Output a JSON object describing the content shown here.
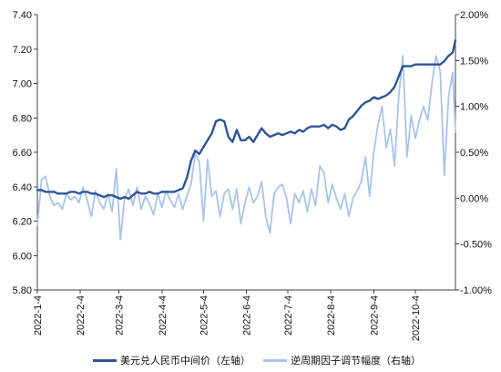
{
  "chart_data": {
    "type": "line",
    "grid": false,
    "legend_position": "bottom",
    "x_range": [
      "2022-01-04",
      "2022-11-02"
    ],
    "x_ticks": [
      "2022-1-4",
      "2022-2-4",
      "2022-3-4",
      "2022-4-4",
      "2022-5-4",
      "2022-6-4",
      "2022-7-4",
      "2022-8-4",
      "2022-9-4",
      "2022-10-4"
    ],
    "y_left": {
      "range": [
        5.8,
        7.4
      ],
      "ticks": [
        "5.80",
        "6.00",
        "6.20",
        "6.40",
        "6.60",
        "6.80",
        "7.00",
        "7.20",
        "7.40"
      ]
    },
    "y_right": {
      "range": [
        -1.0,
        2.0
      ],
      "ticks": [
        "-1.00%",
        "-0.50%",
        "0.00%",
        "0.50%",
        "1.00%",
        "1.50%",
        "2.00%"
      ]
    },
    "x": [
      "2022-01-04",
      "2022-01-07",
      "2022-01-10",
      "2022-01-13",
      "2022-01-16",
      "2022-01-19",
      "2022-01-22",
      "2022-01-25",
      "2022-01-28",
      "2022-01-31",
      "2022-02-03",
      "2022-02-06",
      "2022-02-09",
      "2022-02-12",
      "2022-02-15",
      "2022-02-18",
      "2022-02-21",
      "2022-02-24",
      "2022-02-27",
      "2022-03-02",
      "2022-03-05",
      "2022-03-08",
      "2022-03-11",
      "2022-03-14",
      "2022-03-17",
      "2022-03-20",
      "2022-03-23",
      "2022-03-26",
      "2022-03-29",
      "2022-04-01",
      "2022-04-04",
      "2022-04-07",
      "2022-04-10",
      "2022-04-13",
      "2022-04-16",
      "2022-04-19",
      "2022-04-22",
      "2022-04-25",
      "2022-04-28",
      "2022-05-01",
      "2022-05-04",
      "2022-05-07",
      "2022-05-10",
      "2022-05-13",
      "2022-05-16",
      "2022-05-19",
      "2022-05-22",
      "2022-05-25",
      "2022-05-28",
      "2022-05-31",
      "2022-06-03",
      "2022-06-06",
      "2022-06-09",
      "2022-06-12",
      "2022-06-15",
      "2022-06-18",
      "2022-06-21",
      "2022-06-24",
      "2022-06-27",
      "2022-06-30",
      "2022-07-03",
      "2022-07-06",
      "2022-07-09",
      "2022-07-12",
      "2022-07-15",
      "2022-07-18",
      "2022-07-21",
      "2022-07-24",
      "2022-07-27",
      "2022-07-30",
      "2022-08-02",
      "2022-08-05",
      "2022-08-08",
      "2022-08-11",
      "2022-08-14",
      "2022-08-17",
      "2022-08-20",
      "2022-08-23",
      "2022-08-26",
      "2022-08-29",
      "2022-09-01",
      "2022-09-04",
      "2022-09-07",
      "2022-09-10",
      "2022-09-13",
      "2022-09-16",
      "2022-09-19",
      "2022-09-22",
      "2022-09-25",
      "2022-09-28",
      "2022-10-01",
      "2022-10-04",
      "2022-10-07",
      "2022-10-10",
      "2022-10-13",
      "2022-10-16",
      "2022-10-19",
      "2022-10-22",
      "2022-10-25",
      "2022-10-28",
      "2022-10-31",
      "2022-11-02"
    ],
    "series": [
      {
        "name": "美元兑人民币中间价（左轴）",
        "axis": "left",
        "color": "#2F5597",
        "values": [
          6.38,
          6.38,
          6.37,
          6.37,
          6.37,
          6.36,
          6.36,
          6.36,
          6.37,
          6.37,
          6.36,
          6.37,
          6.37,
          6.36,
          6.36,
          6.35,
          6.34,
          6.35,
          6.35,
          6.34,
          6.33,
          6.34,
          6.33,
          6.35,
          6.37,
          6.36,
          6.36,
          6.37,
          6.36,
          6.36,
          6.37,
          6.37,
          6.37,
          6.37,
          6.38,
          6.39,
          6.45,
          6.55,
          6.61,
          6.59,
          6.63,
          6.67,
          6.71,
          6.78,
          6.79,
          6.78,
          6.69,
          6.66,
          6.73,
          6.67,
          6.67,
          6.69,
          6.66,
          6.7,
          6.74,
          6.71,
          6.69,
          6.7,
          6.71,
          6.7,
          6.71,
          6.72,
          6.71,
          6.73,
          6.72,
          6.74,
          6.75,
          6.75,
          6.75,
          6.76,
          6.74,
          6.76,
          6.75,
          6.73,
          6.74,
          6.79,
          6.81,
          6.84,
          6.87,
          6.89,
          6.9,
          6.92,
          6.91,
          6.92,
          6.93,
          6.95,
          6.98,
          7.04,
          7.1,
          7.1,
          7.1,
          7.11,
          7.11,
          7.11,
          7.11,
          7.11,
          7.11,
          7.11,
          7.13,
          7.16,
          7.18,
          7.25
        ]
      },
      {
        "name": "逆周期因子调节幅度（右轴）",
        "axis": "right",
        "color": "#A9C4EB",
        "values": [
          -0.3,
          0.2,
          0.24,
          0.02,
          -0.08,
          -0.05,
          -0.12,
          0.05,
          -0.02,
          0.02,
          -0.05,
          0.12,
          -0.02,
          -0.2,
          0.08,
          -0.05,
          -0.12,
          0.05,
          -0.15,
          0.32,
          -0.45,
          0.0,
          0.1,
          -0.08,
          0.12,
          -0.12,
          0.02,
          -0.06,
          -0.18,
          0.05,
          -0.1,
          0.08,
          -0.02,
          -0.1,
          0.05,
          -0.12,
          0.02,
          0.15,
          0.48,
          0.4,
          -0.25,
          0.42,
          0.02,
          0.08,
          -0.2,
          0.05,
          0.1,
          -0.12,
          0.1,
          -0.28,
          -0.05,
          0.12,
          -0.05,
          0.02,
          0.18,
          -0.2,
          -0.38,
          0.05,
          0.12,
          0.15,
          0.0,
          -0.28,
          0.05,
          -0.05,
          0.08,
          -0.15,
          0.1,
          -0.08,
          0.35,
          0.28,
          -0.05,
          0.15,
          0.0,
          -0.12,
          0.05,
          -0.2,
          0.0,
          0.08,
          0.18,
          0.45,
          0.02,
          0.5,
          0.8,
          1.0,
          0.55,
          0.75,
          0.35,
          1.1,
          1.55,
          0.45,
          0.9,
          0.65,
          0.85,
          1.0,
          0.85,
          1.25,
          1.55,
          1.38,
          0.25,
          1.1,
          1.37,
          0.72
        ]
      }
    ]
  }
}
